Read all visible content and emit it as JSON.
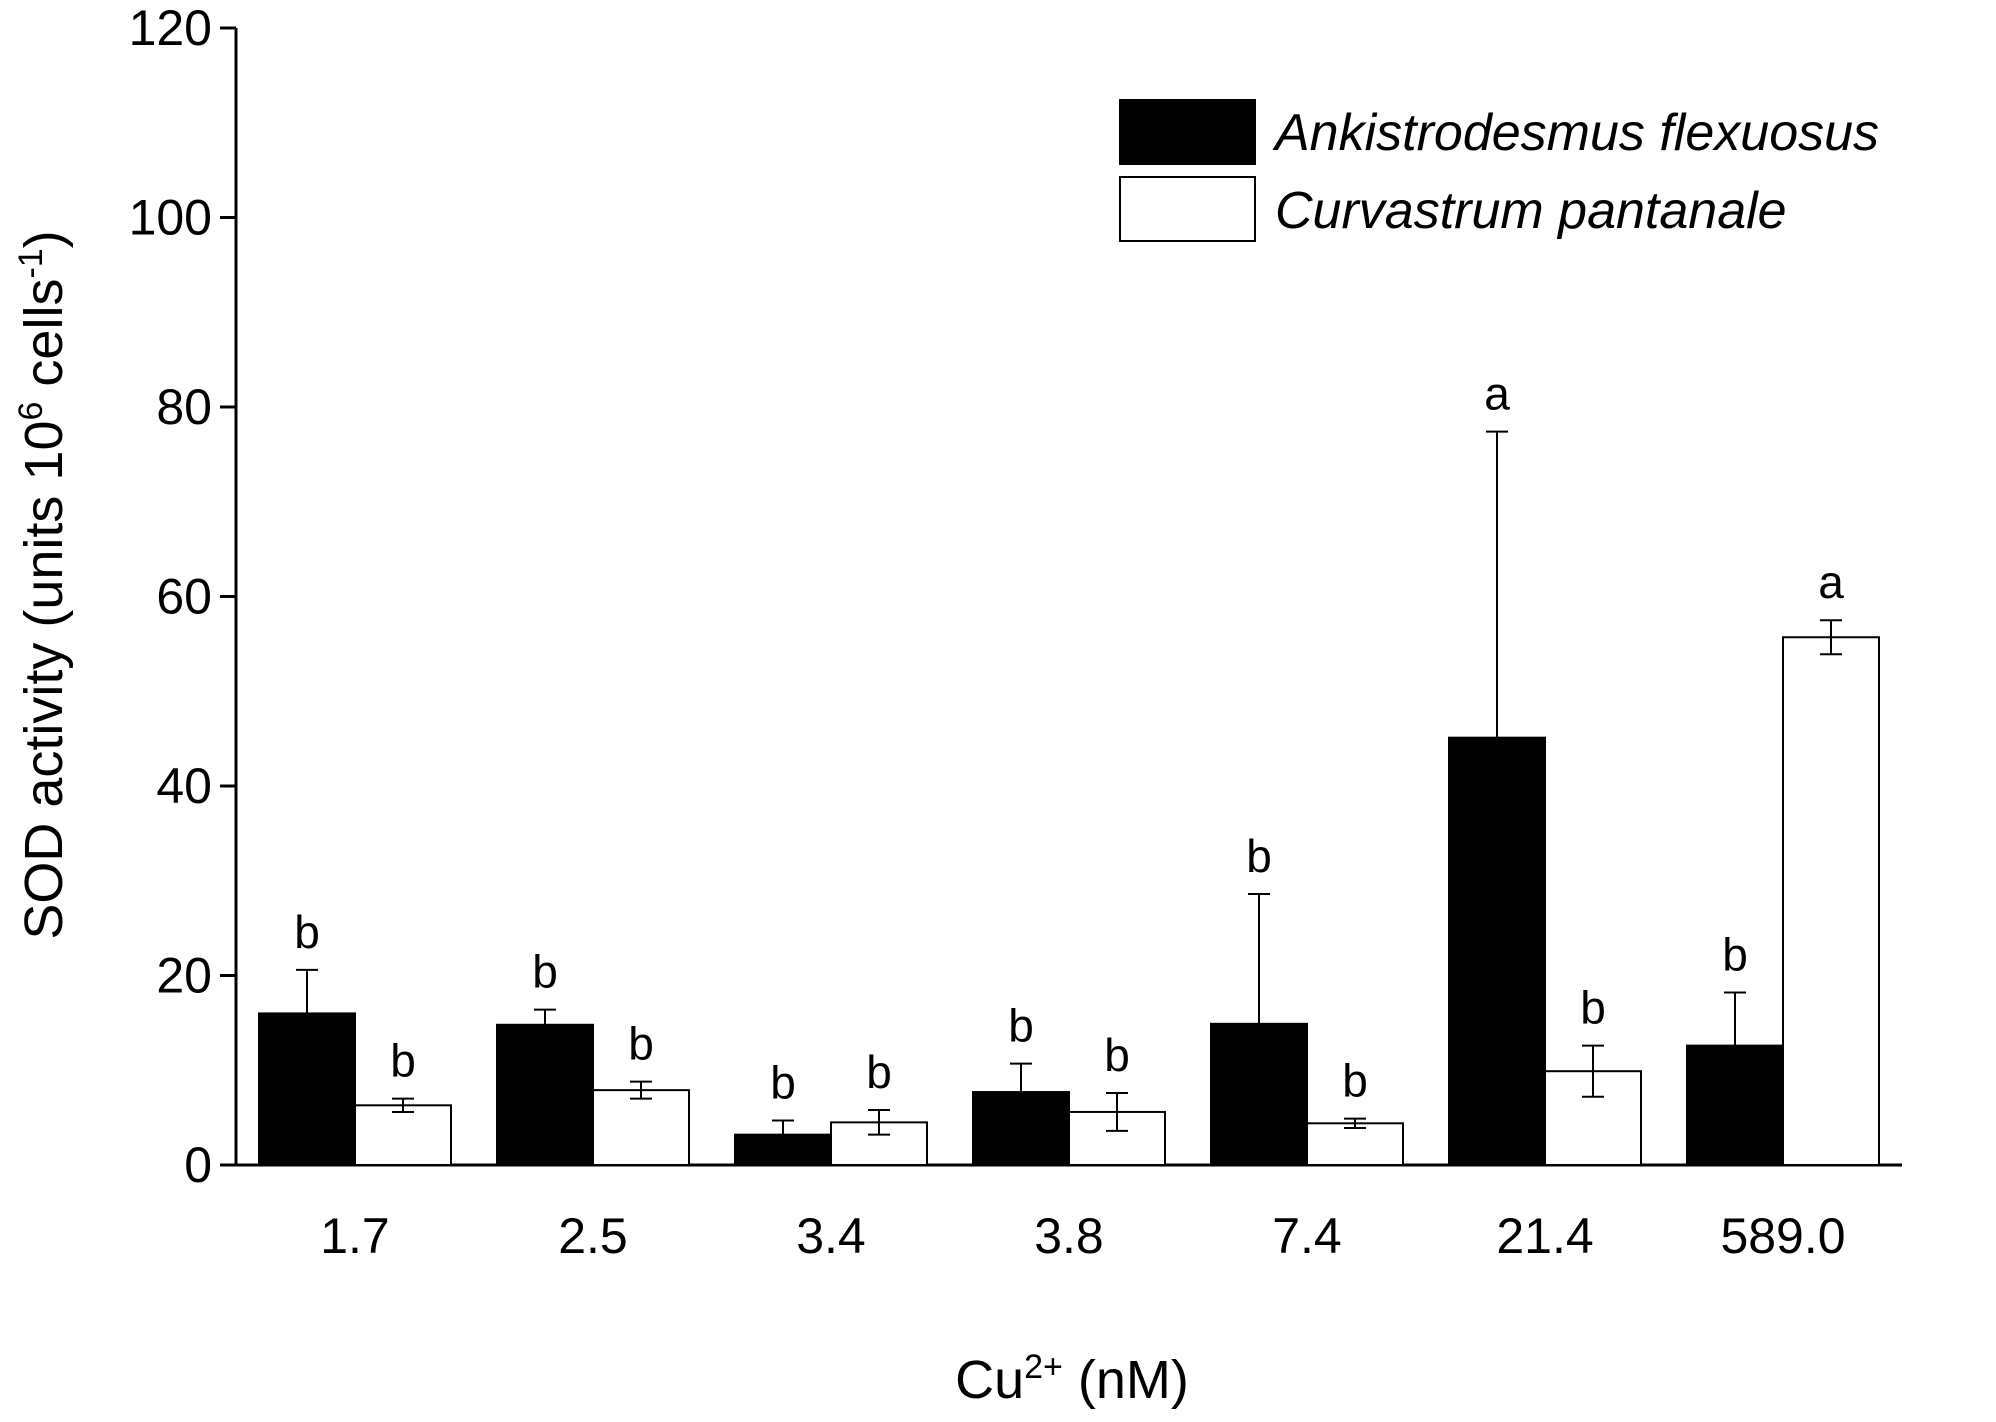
{
  "chart_data": {
    "type": "bar",
    "xlabel_main": "Cu",
    "xlabel_sup": "2+",
    "xlabel_unit": " (nM)",
    "ylabel_main": "SOD activity (units 10",
    "ylabel_sup1": "6",
    "ylabel_mid": " cells",
    "ylabel_sup2": "-1",
    "ylabel_end": ")",
    "ylim": [
      0,
      120
    ],
    "yticks": [
      "0",
      "20",
      "40",
      "60",
      "80",
      "100",
      "120"
    ],
    "categories": [
      "1.7",
      "2.5",
      "3.4",
      "3.8",
      "7.4",
      "21.4",
      "589.0"
    ],
    "legend_position": "top-right",
    "series": [
      {
        "name": "Ankistrodesmus flexuosus",
        "fill": "#000000",
        "values": [
          16.0,
          14.8,
          3.2,
          7.7,
          14.9,
          45.1,
          12.6
        ],
        "errors": [
          4.6,
          1.6,
          1.5,
          3.0,
          13.7,
          32.3,
          5.6
        ],
        "labels": [
          "b",
          "b",
          "b",
          "b",
          "b",
          "a",
          "b"
        ]
      },
      {
        "name": "Curvastrum pantanale",
        "fill": "#ffffff",
        "values": [
          6.3,
          7.9,
          4.5,
          5.6,
          4.4,
          9.9,
          55.7
        ],
        "errors": [
          0.7,
          0.9,
          1.3,
          2.0,
          0.5,
          2.7,
          1.8
        ],
        "labels": [
          "b",
          "b",
          "b",
          "b",
          "b",
          "b",
          "a"
        ]
      }
    ]
  }
}
